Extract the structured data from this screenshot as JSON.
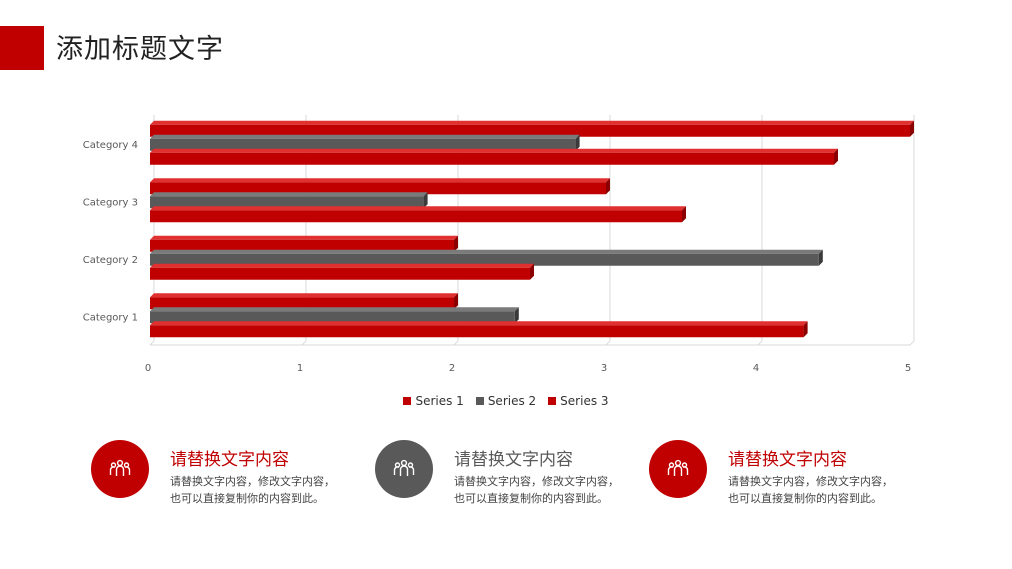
{
  "page": {
    "title": "添加标题文字"
  },
  "colors": {
    "accent": "#c00000",
    "gray": "#595959"
  },
  "chart_data": {
    "type": "bar",
    "orientation": "horizontal",
    "categories": [
      "Category 1",
      "Category 2",
      "Category 3",
      "Category 4"
    ],
    "series": [
      {
        "name": "Series 1",
        "values": [
          2.0,
          2.0,
          3.0,
          5.0
        ],
        "color": "#c00000"
      },
      {
        "name": "Series 2",
        "values": [
          2.4,
          4.4,
          1.8,
          2.8
        ],
        "color": "#595959"
      },
      {
        "name": "Series 3",
        "values": [
          4.3,
          2.5,
          3.5,
          4.5
        ],
        "color": "#c00000"
      }
    ],
    "xlim": [
      0,
      5
    ],
    "xticks": [
      "0",
      "1",
      "2",
      "3",
      "4",
      "5"
    ],
    "grid": true,
    "legend_position": "bottom"
  },
  "cards": [
    {
      "icon": "people-icon",
      "title": "请替换文字内容",
      "line1": "请替换文字内容，修改文字内容，",
      "line2": "也可以直接复制你的内容到此。",
      "circle_color": "#c00000",
      "title_color": "#c00000"
    },
    {
      "icon": "people-icon",
      "title": "请替换文字内容",
      "line1": "请替换文字内容，修改文字内容，",
      "line2": "也可以直接复制你的内容到此。",
      "circle_color": "#595959",
      "title_color": "#595959"
    },
    {
      "icon": "people-icon",
      "title": "请替换文字内容",
      "line1": "请替换文字内容，修改文字内容，",
      "line2": "也可以直接复制你的内容到此。",
      "circle_color": "#c00000",
      "title_color": "#c00000"
    }
  ]
}
